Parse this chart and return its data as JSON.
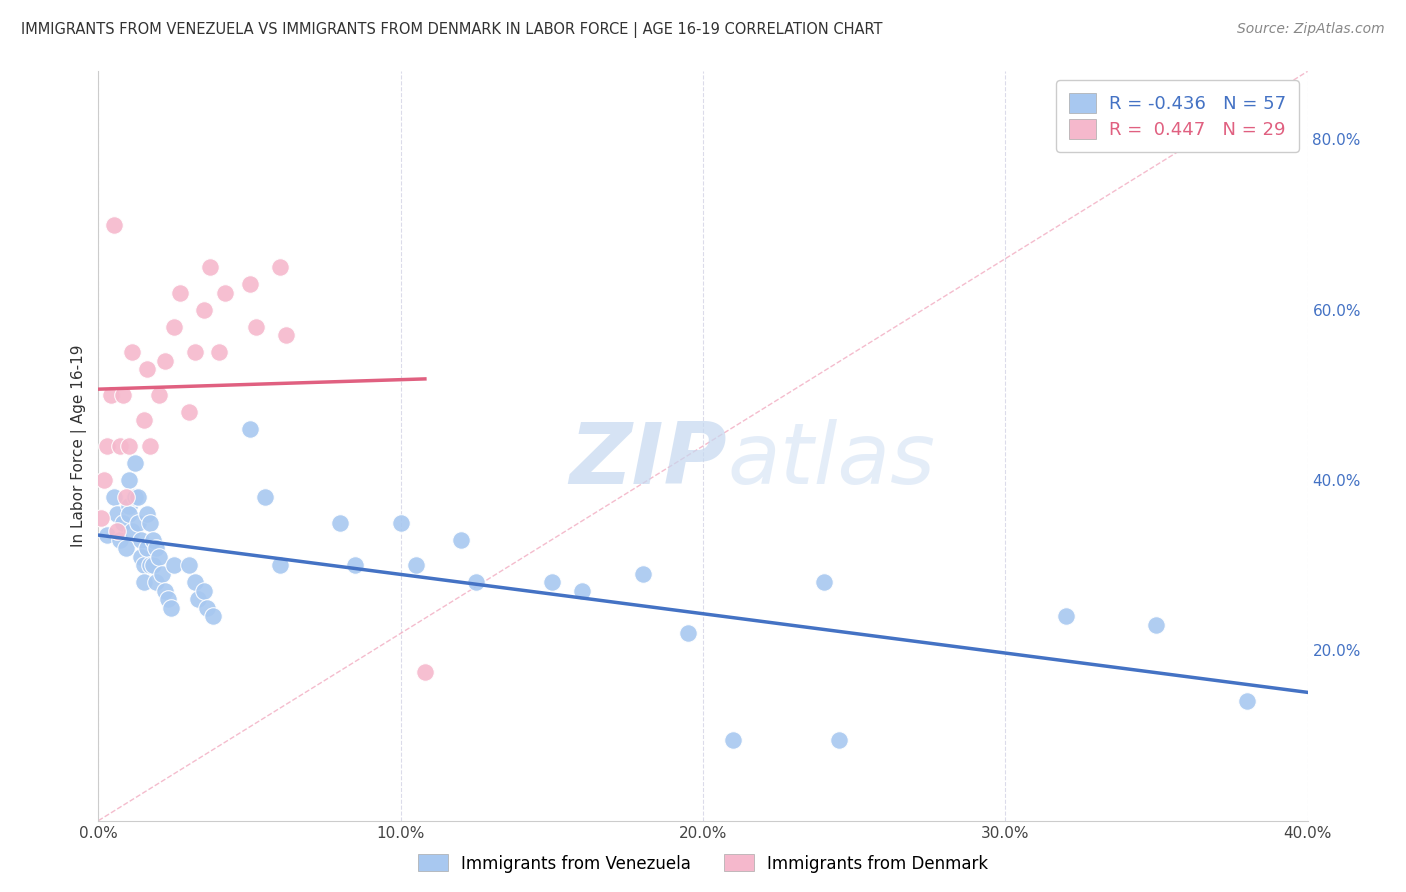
{
  "title": "IMMIGRANTS FROM VENEZUELA VS IMMIGRANTS FROM DENMARK IN LABOR FORCE | AGE 16-19 CORRELATION CHART",
  "source": "Source: ZipAtlas.com",
  "ylabel": "In Labor Force | Age 16-19",
  "xlim": [
    0.0,
    0.4
  ],
  "ylim": [
    0.0,
    0.88
  ],
  "xtick_labels": [
    "0.0%",
    "10.0%",
    "20.0%",
    "30.0%",
    "40.0%"
  ],
  "xtick_vals": [
    0.0,
    0.1,
    0.2,
    0.3,
    0.4
  ],
  "ytick_labels_right": [
    "20.0%",
    "40.0%",
    "60.0%",
    "80.0%"
  ],
  "ytick_vals_right": [
    0.2,
    0.4,
    0.6,
    0.8
  ],
  "watermark_zip": "ZIP",
  "watermark_atlas": "atlas",
  "legend_R_venezuela": "-0.436",
  "legend_N_venezuela": "57",
  "legend_R_denmark": " 0.447",
  "legend_N_denmark": "29",
  "color_venezuela": "#a8c8f0",
  "color_denmark": "#f5b8cc",
  "line_color_venezuela": "#4472c4",
  "line_color_denmark": "#e06080",
  "ref_line_color": "#f0a0b8",
  "background_color": "#ffffff",
  "grid_color": "#d8d8e8",
  "venezuela_x": [
    0.003,
    0.005,
    0.006,
    0.007,
    0.008,
    0.009,
    0.01,
    0.01,
    0.01,
    0.011,
    0.012,
    0.012,
    0.013,
    0.013,
    0.014,
    0.014,
    0.015,
    0.015,
    0.016,
    0.016,
    0.017,
    0.017,
    0.018,
    0.018,
    0.019,
    0.019,
    0.02,
    0.021,
    0.022,
    0.023,
    0.024,
    0.025,
    0.03,
    0.032,
    0.033,
    0.035,
    0.036,
    0.038,
    0.05,
    0.055,
    0.06,
    0.08,
    0.085,
    0.1,
    0.105,
    0.12,
    0.125,
    0.15,
    0.16,
    0.18,
    0.195,
    0.21,
    0.24,
    0.245,
    0.32,
    0.35,
    0.38
  ],
  "venezuela_y": [
    0.335,
    0.38,
    0.36,
    0.33,
    0.35,
    0.32,
    0.4,
    0.37,
    0.36,
    0.34,
    0.42,
    0.38,
    0.38,
    0.35,
    0.33,
    0.31,
    0.3,
    0.28,
    0.36,
    0.32,
    0.35,
    0.3,
    0.33,
    0.3,
    0.32,
    0.28,
    0.31,
    0.29,
    0.27,
    0.26,
    0.25,
    0.3,
    0.3,
    0.28,
    0.26,
    0.27,
    0.25,
    0.24,
    0.46,
    0.38,
    0.3,
    0.35,
    0.3,
    0.35,
    0.3,
    0.33,
    0.28,
    0.28,
    0.27,
    0.29,
    0.22,
    0.095,
    0.28,
    0.095,
    0.24,
    0.23,
    0.14
  ],
  "denmark_x": [
    0.001,
    0.002,
    0.003,
    0.004,
    0.005,
    0.006,
    0.007,
    0.008,
    0.009,
    0.01,
    0.011,
    0.015,
    0.016,
    0.017,
    0.02,
    0.022,
    0.025,
    0.027,
    0.03,
    0.032,
    0.035,
    0.037,
    0.04,
    0.042,
    0.05,
    0.052,
    0.06,
    0.062,
    0.108
  ],
  "denmark_y": [
    0.355,
    0.4,
    0.44,
    0.5,
    0.7,
    0.34,
    0.44,
    0.5,
    0.38,
    0.44,
    0.55,
    0.47,
    0.53,
    0.44,
    0.5,
    0.54,
    0.58,
    0.62,
    0.48,
    0.55,
    0.6,
    0.65,
    0.55,
    0.62,
    0.63,
    0.58,
    0.65,
    0.57,
    0.175
  ]
}
